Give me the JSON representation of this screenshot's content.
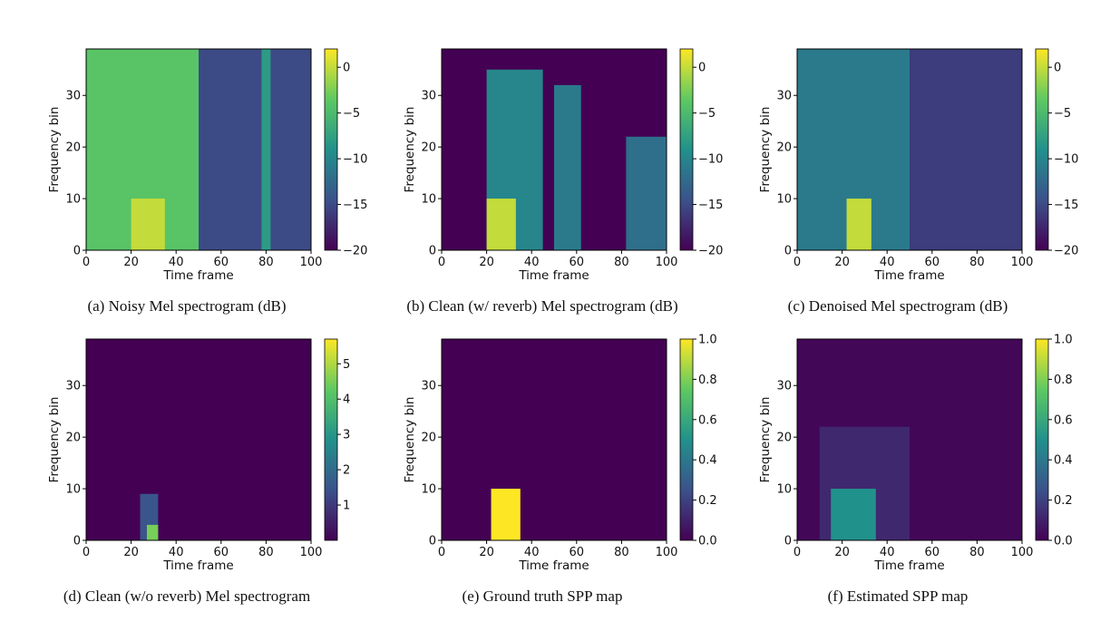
{
  "chart_data": [
    {
      "type": "heatmap",
      "caption": "(a) Noisy Mel spectrogram (dB)",
      "xlabel": "Time frame",
      "ylabel": "Frequency bin",
      "xlim": [
        0,
        100
      ],
      "ylim": [
        0,
        39
      ],
      "xticks": [
        0,
        20,
        40,
        60,
        80,
        100
      ],
      "yticks": [
        0,
        10,
        20,
        30
      ],
      "colorbar": {
        "min": -20,
        "max": 2,
        "ticks": [
          0,
          -5,
          -10,
          -15,
          -20
        ],
        "tick_labels": [
          "0",
          "−5",
          "−10",
          "−15",
          "−20"
        ]
      },
      "regions": [
        {
          "x": [
            0,
            50
          ],
          "y": [
            0,
            39
          ],
          "value": -4
        },
        {
          "x": [
            50,
            100
          ],
          "y": [
            0,
            39
          ],
          "value": -15
        },
        {
          "x": [
            78,
            82
          ],
          "y": [
            0,
            39
          ],
          "value": -8
        },
        {
          "x": [
            20,
            35
          ],
          "y": [
            0,
            10
          ],
          "value": 0
        }
      ]
    },
    {
      "type": "heatmap",
      "caption": "(b) Clean (w/ reverb) Mel spectrogram (dB)",
      "xlabel": "Time frame",
      "ylabel": "Frequency bin",
      "xlim": [
        0,
        100
      ],
      "ylim": [
        0,
        39
      ],
      "xticks": [
        0,
        20,
        40,
        60,
        80,
        100
      ],
      "yticks": [
        0,
        10,
        20,
        30
      ],
      "colorbar": {
        "min": -20,
        "max": 2,
        "ticks": [
          0,
          -5,
          -10,
          -15,
          -20
        ],
        "tick_labels": [
          "0",
          "−5",
          "−10",
          "−15",
          "−20"
        ]
      },
      "regions": [
        {
          "x": [
            0,
            100
          ],
          "y": [
            0,
            39
          ],
          "value": -20
        },
        {
          "x": [
            20,
            45
          ],
          "y": [
            0,
            35
          ],
          "value": -10
        },
        {
          "x": [
            50,
            62
          ],
          "y": [
            0,
            32
          ],
          "value": -11
        },
        {
          "x": [
            82,
            100
          ],
          "y": [
            0,
            22
          ],
          "value": -12
        },
        {
          "x": [
            20,
            33
          ],
          "y": [
            0,
            10
          ],
          "value": 0
        }
      ]
    },
    {
      "type": "heatmap",
      "caption": "(c) Denoised Mel spectrogram (dB)",
      "xlabel": "Time frame",
      "ylabel": "Frequency bin",
      "xlim": [
        0,
        100
      ],
      "ylim": [
        0,
        39
      ],
      "xticks": [
        0,
        20,
        40,
        60,
        80,
        100
      ],
      "yticks": [
        0,
        10,
        20,
        30
      ],
      "colorbar": {
        "min": -20,
        "max": 2,
        "ticks": [
          0,
          -5,
          -10,
          -15,
          -20
        ],
        "tick_labels": [
          "0",
          "−5",
          "−10",
          "−15",
          "−20"
        ]
      },
      "regions": [
        {
          "x": [
            0,
            50
          ],
          "y": [
            0,
            39
          ],
          "value": -11
        },
        {
          "x": [
            50,
            100
          ],
          "y": [
            0,
            39
          ],
          "value": -16
        },
        {
          "x": [
            22,
            33
          ],
          "y": [
            0,
            10
          ],
          "value": 0
        }
      ]
    },
    {
      "type": "heatmap",
      "caption": "(d) Clean (w/o reverb) Mel spectrogram",
      "xlabel": "Time frame",
      "ylabel": "Frequency bin",
      "xlim": [
        0,
        100
      ],
      "ylim": [
        0,
        39
      ],
      "xticks": [
        0,
        20,
        40,
        60,
        80,
        100
      ],
      "yticks": [
        0,
        10,
        20,
        30
      ],
      "colorbar": {
        "min": 0,
        "max": 5.7,
        "ticks": [
          1,
          2,
          3,
          4,
          5
        ],
        "tick_labels": [
          "1",
          "2",
          "3",
          "4",
          "5"
        ]
      },
      "regions": [
        {
          "x": [
            0,
            100
          ],
          "y": [
            0,
            39
          ],
          "value": 0
        },
        {
          "x": [
            24,
            32
          ],
          "y": [
            0,
            9
          ],
          "value": 1.5
        },
        {
          "x": [
            27,
            32
          ],
          "y": [
            0,
            3
          ],
          "value": 4.5
        }
      ]
    },
    {
      "type": "heatmap",
      "caption": "(e) Ground truth SPP map",
      "xlabel": "Time frame",
      "ylabel": "Frequency bin",
      "xlim": [
        0,
        100
      ],
      "ylim": [
        0,
        39
      ],
      "xticks": [
        0,
        20,
        40,
        60,
        80,
        100
      ],
      "yticks": [
        0,
        10,
        20,
        30
      ],
      "colorbar": {
        "min": 0,
        "max": 1,
        "ticks": [
          1.0,
          0.8,
          0.6,
          0.4,
          0.2,
          0.0
        ],
        "tick_labels": [
          "1.0",
          "0.8",
          "0.6",
          "0.4",
          "0.2",
          "0.0"
        ]
      },
      "regions": [
        {
          "x": [
            0,
            100
          ],
          "y": [
            0,
            39
          ],
          "value": 0
        },
        {
          "x": [
            22,
            35
          ],
          "y": [
            0,
            10
          ],
          "value": 1
        }
      ]
    },
    {
      "type": "heatmap",
      "caption": "(f) Estimated SPP map",
      "xlabel": "Time frame",
      "ylabel": "Frequency bin",
      "xlim": [
        0,
        100
      ],
      "ylim": [
        0,
        39
      ],
      "xticks": [
        0,
        20,
        40,
        60,
        80,
        100
      ],
      "yticks": [
        0,
        10,
        20,
        30
      ],
      "colorbar": {
        "min": 0,
        "max": 1,
        "ticks": [
          1.0,
          0.8,
          0.6,
          0.4,
          0.2,
          0.0
        ],
        "tick_labels": [
          "1.0",
          "0.8",
          "0.6",
          "0.4",
          "0.2",
          "0.0"
        ]
      },
      "regions": [
        {
          "x": [
            0,
            100
          ],
          "y": [
            0,
            39
          ],
          "value": 0.02
        },
        {
          "x": [
            10,
            50
          ],
          "y": [
            0,
            22
          ],
          "value": 0.12
        },
        {
          "x": [
            15,
            35
          ],
          "y": [
            0,
            10
          ],
          "value": 0.5
        }
      ]
    }
  ],
  "colors": {
    "viridis": [
      "#440154",
      "#3b528b",
      "#21918c",
      "#5ec962",
      "#fde725"
    ]
  }
}
